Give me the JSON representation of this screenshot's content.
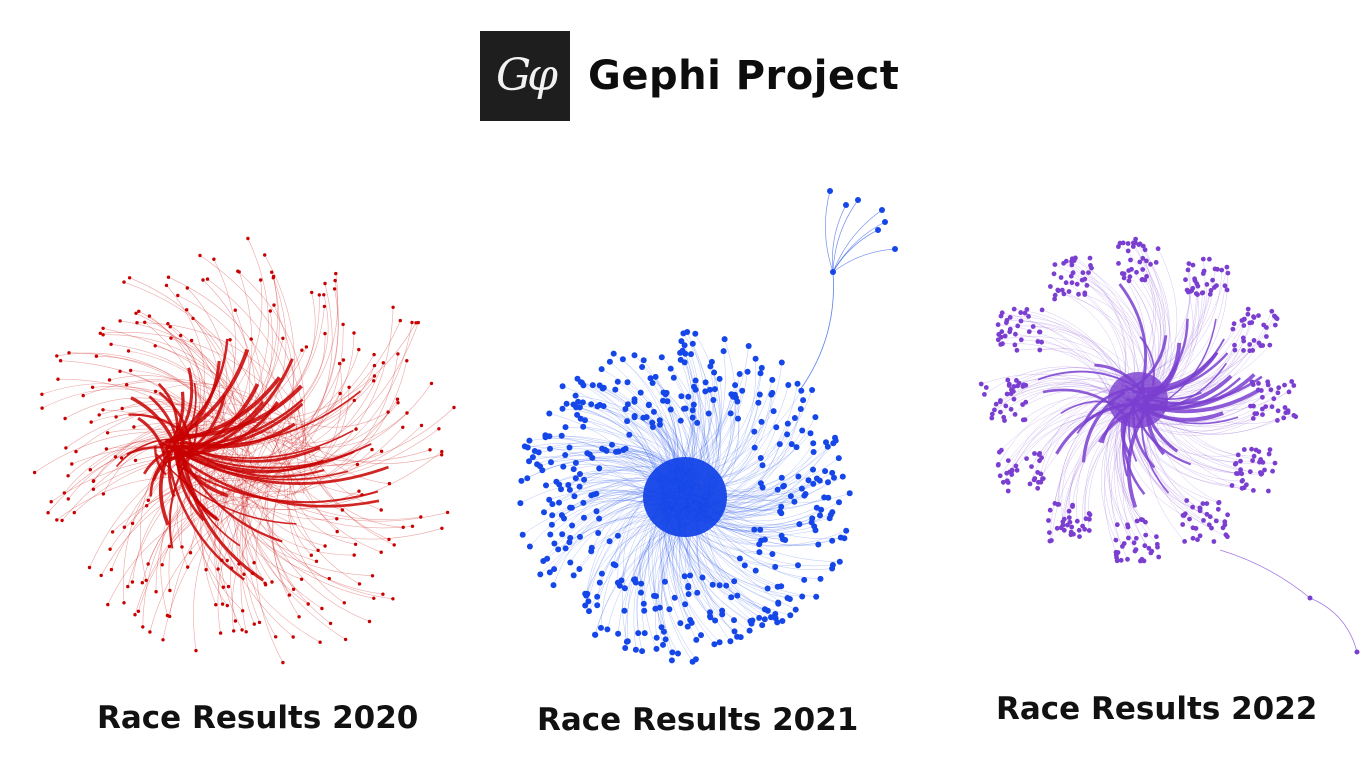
{
  "header": {
    "logo_text": "Gφ",
    "title": "Gephi Project"
  },
  "graphs": [
    {
      "id": "2020",
      "caption": "Race Results 2020",
      "color": "#c80000",
      "style": "sparse-spiral"
    },
    {
      "id": "2021",
      "caption": "Race Results 2021",
      "color": "#1546e8",
      "style": "dense-cluster"
    },
    {
      "id": "2022",
      "caption": "Race Results 2022",
      "color": "#7a3fd0",
      "style": "petal-clusters"
    }
  ]
}
